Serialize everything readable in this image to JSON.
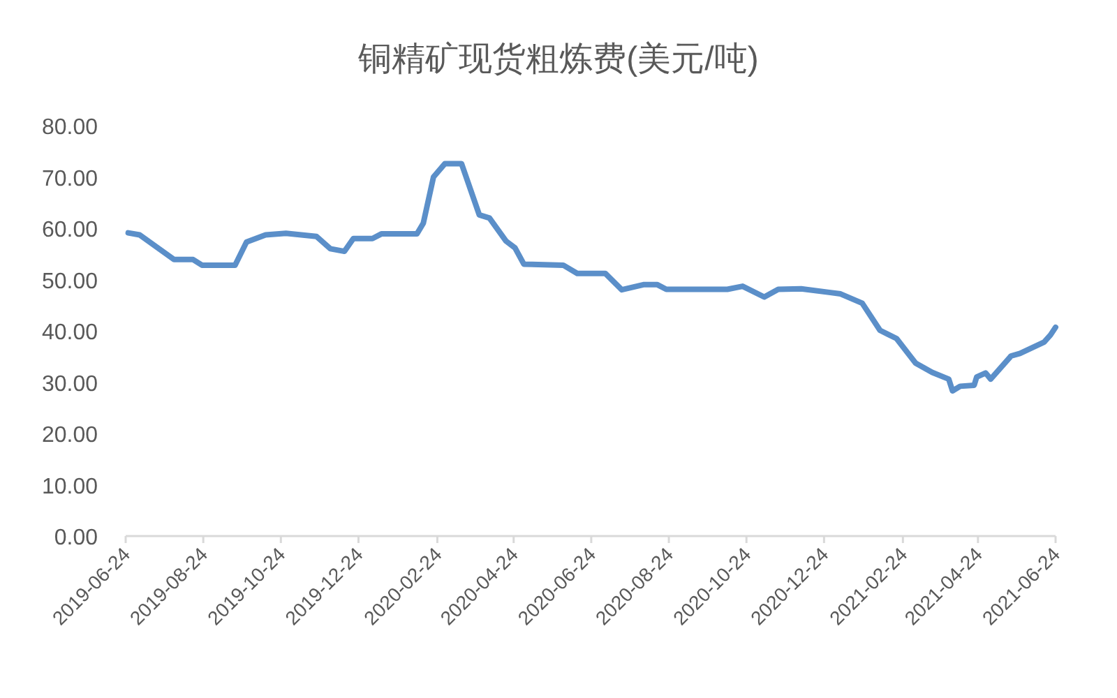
{
  "chart_data": {
    "type": "line",
    "title": "铜精矿现货粗炼费(美元/吨)",
    "x": [
      "2019-06-26",
      "2019-07-05",
      "2019-08-01",
      "2019-08-16",
      "2019-08-23",
      "2019-09-18",
      "2019-09-27",
      "2019-10-12",
      "2019-10-28",
      "2019-11-21",
      "2019-12-02",
      "2019-12-13",
      "2019-12-20",
      "2020-01-04",
      "2020-01-11",
      "2020-02-08",
      "2020-02-13",
      "2020-02-21",
      "2020-03-01",
      "2020-03-14",
      "2020-03-28",
      "2020-04-05",
      "2020-04-18",
      "2020-04-25",
      "2020-05-02",
      "2020-06-02",
      "2020-06-13",
      "2020-07-05",
      "2020-07-18",
      "2020-08-04",
      "2020-08-15",
      "2020-08-22",
      "2020-10-09",
      "2020-10-21",
      "2020-11-07",
      "2020-11-18",
      "2020-12-06",
      "2020-12-28",
      "2021-01-06",
      "2021-01-23",
      "2021-02-06",
      "2021-02-19",
      "2021-03-06",
      "2021-03-19",
      "2021-04-01",
      "2021-04-04",
      "2021-04-10",
      "2021-04-21",
      "2021-04-23",
      "2021-04-30",
      "2021-05-04",
      "2021-05-20",
      "2021-05-27",
      "2021-06-15",
      "2021-06-20",
      "2021-06-24"
    ],
    "series": [
      {
        "color": "#5b8fc9",
        "values": [
          59.1,
          58.7,
          53.9,
          53.9,
          52.8,
          52.8,
          57.3,
          58.7,
          59.0,
          58.4,
          56.0,
          55.5,
          58.0,
          58.0,
          58.9,
          58.9,
          61.0,
          70.0,
          72.6,
          72.6,
          62.6,
          62.0,
          57.5,
          56.2,
          53.0,
          52.8,
          51.2,
          51.2,
          48.0,
          49.0,
          49.0,
          48.1,
          48.1,
          48.7,
          46.6,
          48.1,
          48.2,
          47.5,
          47.2,
          45.4,
          40.1,
          38.5,
          33.7,
          31.9,
          30.6,
          28.3,
          29.2,
          29.4,
          31.0,
          31.8,
          30.6,
          35.1,
          35.6,
          37.8,
          39.2,
          40.7
        ]
      }
    ],
    "xlim": [
      "2019-06-24",
      "2021-06-24"
    ],
    "xticks": [
      "2019-06-24",
      "2019-08-24",
      "2019-10-24",
      "2019-12-24",
      "2020-02-24",
      "2020-04-24",
      "2020-06-24",
      "2020-08-24",
      "2020-10-24",
      "2020-12-24",
      "2021-02-24",
      "2021-04-24",
      "2021-06-24"
    ],
    "ylim": [
      0,
      80
    ],
    "yticks": [
      {
        "value": 0,
        "label": "0.00"
      },
      {
        "value": 10,
        "label": "10.00"
      },
      {
        "value": 20,
        "label": "20.00"
      },
      {
        "value": 30,
        "label": "30.00"
      },
      {
        "value": 40,
        "label": "40.00"
      },
      {
        "value": 50,
        "label": "50.00"
      },
      {
        "value": 60,
        "label": "60.00"
      },
      {
        "value": 70,
        "label": "70.00"
      },
      {
        "value": 80,
        "label": "80.00"
      }
    ],
    "grid": false
  }
}
